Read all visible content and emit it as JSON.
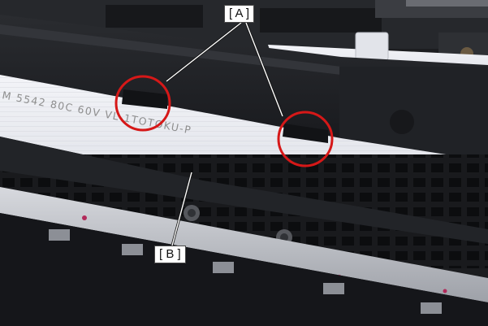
{
  "callouts": {
    "a": "[ A ]",
    "b": "[ B ]"
  },
  "cable_print": "M 5542 80C 60V VL-1TOTOKU-P",
  "colors": {
    "highlight_circle": "#d61818",
    "leader_line": "#ffffff",
    "cable": "#ecedf2",
    "frame_dark": "#1f2023"
  },
  "icons": [
    "red-circle-highlight",
    "leader-line"
  ]
}
